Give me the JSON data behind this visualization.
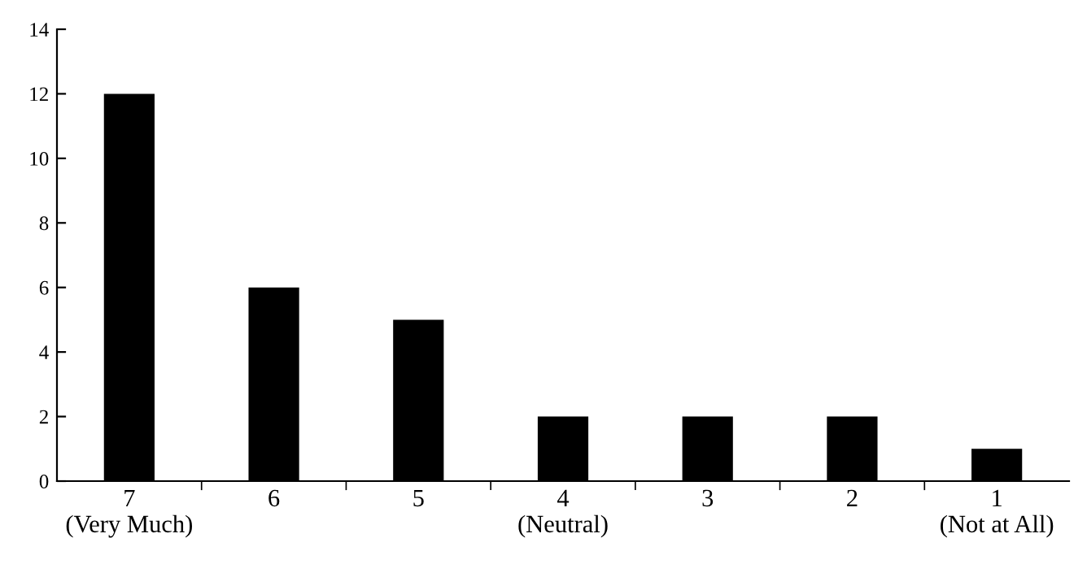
{
  "chart_data": {
    "type": "bar",
    "categories": [
      "7\n(Very Much)",
      "6",
      "5",
      "4\n(Neutral)",
      "3",
      "2",
      "1\n(Not at All)"
    ],
    "values": [
      12,
      6,
      5,
      2,
      2,
      2,
      1
    ],
    "color": "#000000",
    "ylim": [
      0,
      14
    ],
    "yticks": [
      0,
      2,
      4,
      6,
      8,
      10,
      12,
      14
    ],
    "grid": false,
    "legend": false
  }
}
